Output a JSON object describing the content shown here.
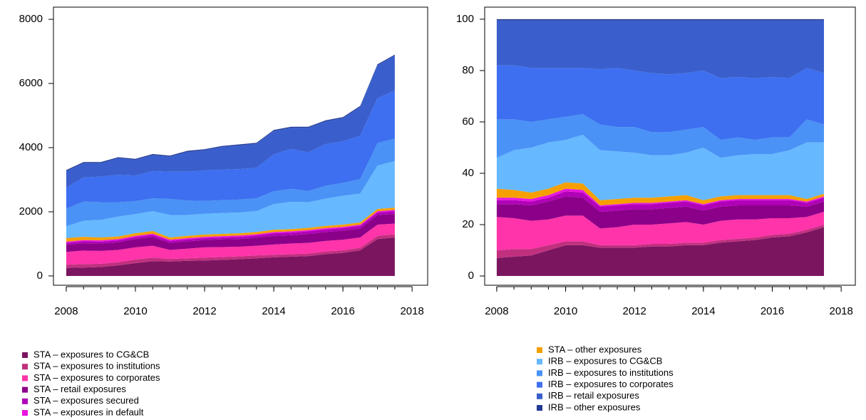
{
  "chart_data": [
    {
      "type": "area",
      "stacked": true,
      "x": [
        2008,
        2008.5,
        2009,
        2009.5,
        2010,
        2010.5,
        2011,
        2011.5,
        2012,
        2012.5,
        2013,
        2013.5,
        2014,
        2014.5,
        2015,
        2015.5,
        2016,
        2016.5,
        2017,
        2017.5
      ],
      "xlim": [
        2007.63,
        2018.45
      ],
      "xticks": [
        2008,
        2010,
        2012,
        2014,
        2016,
        2018
      ],
      "ylim": [
        -290,
        8380
      ],
      "yticks": [
        0,
        2000,
        4000,
        6000,
        8000
      ],
      "legend_entries": [
        0,
        1,
        2,
        3,
        4,
        5
      ],
      "series": [
        {
          "name": "STA – exposures to CG&CB",
          "color": "#7b1560",
          "values": [
            250,
            260,
            280,
            330,
            400,
            460,
            450,
            470,
            480,
            500,
            520,
            550,
            580,
            600,
            620,
            680,
            720,
            800,
            1150,
            1200
          ]
        },
        {
          "name": "STA – exposures to institutions",
          "color": "#c1307f",
          "values": [
            100,
            110,
            100,
            100,
            110,
            110,
            80,
            80,
            90,
            90,
            90,
            90,
            80,
            80,
            80,
            80,
            80,
            80,
            100,
            100
          ]
        },
        {
          "name": "STA – exposures to corporates",
          "color": "#ff33aa",
          "values": [
            400,
            420,
            400,
            380,
            380,
            370,
            280,
            300,
            320,
            310,
            300,
            300,
            320,
            330,
            330,
            330,
            330,
            320,
            350,
            330
          ]
        },
        {
          "name": "STA – retail exposures",
          "color": "#8b0088",
          "values": [
            220,
            230,
            230,
            240,
            260,
            270,
            220,
            230,
            230,
            240,
            240,
            250,
            270,
            260,
            280,
            280,
            280,
            280,
            300,
            300
          ]
        },
        {
          "name": "STA – exposures secured",
          "color": "#b000b8",
          "values": [
            60,
            60,
            60,
            60,
            60,
            70,
            60,
            60,
            60,
            60,
            70,
            70,
            80,
            80,
            80,
            80,
            80,
            80,
            80,
            90
          ]
        },
        {
          "name": "STA – exposures in default",
          "color": "#e815e0",
          "values": [
            40,
            40,
            40,
            40,
            40,
            40,
            40,
            40,
            40,
            40,
            40,
            40,
            40,
            40,
            40,
            40,
            40,
            40,
            40,
            40
          ]
        },
        {
          "name": "STA – other exposures",
          "color": "#f5a000",
          "values": [
            110,
            100,
            90,
            80,
            80,
            80,
            70,
            70,
            70,
            70,
            70,
            70,
            70,
            70,
            70,
            70,
            70,
            70,
            70,
            70
          ]
        },
        {
          "name": "IRB – exposures to CG&CB",
          "color": "#66b8ff",
          "values": [
            370,
            500,
            550,
            620,
            600,
            620,
            700,
            650,
            650,
            650,
            650,
            650,
            800,
            850,
            800,
            850,
            900,
            900,
            1350,
            1450
          ]
        },
        {
          "name": "IRB – exposures to institutions",
          "color": "#4a92f5",
          "values": [
            550,
            600,
            550,
            450,
            400,
            400,
            500,
            450,
            400,
            400,
            400,
            400,
            400,
            400,
            350,
            400,
            400,
            450,
            700,
            700
          ]
        },
        {
          "name": "IRB – exposures to corporates",
          "color": "#3d6ff0",
          "values": [
            650,
            750,
            800,
            850,
            800,
            850,
            850,
            900,
            950,
            950,
            950,
            950,
            1150,
            1250,
            1200,
            1300,
            1300,
            1350,
            1400,
            1500
          ]
        },
        {
          "name": "IRB – retail exposures",
          "color": "#3a5fcd",
          "values": [
            520,
            450,
            420,
            520,
            490,
            500,
            470,
            620,
            630,
            710,
            740,
            750,
            730,
            660,
            770,
            710,
            720,
            900,
            1030,
            1090
          ]
        },
        {
          "name": "IRB – other exposures",
          "color": "#233a94",
          "values": [
            30,
            30,
            30,
            30,
            30,
            30,
            30,
            30,
            30,
            30,
            30,
            30,
            30,
            30,
            30,
            30,
            30,
            30,
            30,
            30
          ]
        }
      ]
    },
    {
      "type": "area",
      "stacked": true,
      "x": [
        2008,
        2008.5,
        2009,
        2009.5,
        2010,
        2010.5,
        2011,
        2011.5,
        2012,
        2012.5,
        2013,
        2013.5,
        2014,
        2014.5,
        2015,
        2015.5,
        2016,
        2016.5,
        2017,
        2017.5
      ],
      "xlim": [
        2007.65,
        2018.41
      ],
      "xticks": [
        2008,
        2010,
        2012,
        2014,
        2016,
        2018
      ],
      "ylim": [
        -3.6,
        104.7
      ],
      "yticks": [
        0,
        20,
        40,
        60,
        80,
        100
      ],
      "legend_entries": [
        6,
        7,
        8,
        9,
        10,
        11
      ],
      "series": [
        {
          "name": "STA – exposures to CG&CB",
          "color": "#7b1560",
          "values": [
            7,
            7.5,
            8,
            10,
            12,
            12,
            11,
            11,
            11,
            11.5,
            11.5,
            12,
            12,
            13,
            13.5,
            14,
            15,
            15.5,
            17,
            19
          ]
        },
        {
          "name": "STA – exposures to institutions",
          "color": "#c1307f",
          "values": [
            3,
            3,
            2.5,
            2,
            1.5,
            1.5,
            1,
            1,
            1,
            1,
            1,
            1,
            1,
            1,
            1,
            1,
            1,
            1,
            1,
            1
          ]
        },
        {
          "name": "STA – exposures to corporates",
          "color": "#ff33aa",
          "values": [
            13,
            12,
            11,
            10,
            10,
            10,
            6.5,
            7,
            8,
            7.5,
            8,
            8,
            7,
            7.5,
            7.5,
            7,
            6.5,
            6,
            5,
            5
          ]
        },
        {
          "name": "STA – retail exposures",
          "color": "#8b0088",
          "values": [
            5,
            5.5,
            6,
            7,
            7.5,
            7,
            6.5,
            6.5,
            6,
            6,
            6,
            6,
            5.5,
            5.5,
            5.5,
            5.5,
            5,
            5,
            4,
            4
          ]
        },
        {
          "name": "STA – exposures secured",
          "color": "#b000b8",
          "values": [
            1.5,
            1.5,
            1.5,
            1.5,
            2,
            2,
            2,
            2,
            2,
            2,
            2,
            2,
            2,
            2,
            2,
            2,
            2,
            2,
            1.5,
            1.5
          ]
        },
        {
          "name": "STA – exposures in default",
          "color": "#e815e0",
          "values": [
            1,
            1,
            1,
            1,
            1,
            1,
            0.5,
            0.5,
            0.5,
            0.5,
            0.5,
            0.5,
            0.5,
            0.5,
            0.5,
            0.5,
            0.5,
            0.5,
            0.5,
            0.5
          ]
        },
        {
          "name": "STA – other exposures",
          "color": "#f5a000",
          "values": [
            3.5,
            3,
            2.5,
            2.5,
            2.5,
            2.5,
            2,
            2,
            2,
            2,
            2,
            2,
            1.5,
            1.5,
            1.5,
            1.5,
            1.5,
            1.5,
            1,
            1
          ]
        },
        {
          "name": "IRB – exposures to CG&CB",
          "color": "#66b8ff",
          "values": [
            12,
            15.5,
            17.5,
            18,
            16.5,
            19,
            19.5,
            18.5,
            17.5,
            16.5,
            16,
            16.5,
            20.5,
            15,
            15.5,
            16,
            16,
            17.5,
            22,
            20
          ]
        },
        {
          "name": "IRB – exposures to institutions",
          "color": "#4a92f5",
          "values": [
            15,
            12,
            10,
            9,
            9,
            8,
            10,
            9.5,
            10,
            9,
            9,
            9,
            8,
            7,
            7,
            5.5,
            6.5,
            5,
            9,
            7
          ]
        },
        {
          "name": "IRB – exposures to corporates",
          "color": "#3d6ff0",
          "values": [
            21,
            21,
            21,
            20,
            19,
            18,
            21.5,
            23,
            22,
            23,
            22.5,
            22,
            22,
            24,
            23.5,
            24,
            23.5,
            23,
            20,
            20
          ]
        },
        {
          "name": "IRB – retail exposures",
          "color": "#3a5fcd",
          "values": [
            17.5,
            17.5,
            18.5,
            18.5,
            18.5,
            18.5,
            19,
            18.5,
            19.5,
            20.5,
            21,
            20.5,
            19.5,
            22.5,
            22,
            22.5,
            22,
            22.5,
            18.5,
            20.5
          ]
        },
        {
          "name": "IRB – other exposures",
          "color": "#233a94",
          "values": [
            0.5,
            0.5,
            0.5,
            0.5,
            0.5,
            0.5,
            0.5,
            0.5,
            0.5,
            0.5,
            0.5,
            0.5,
            0.5,
            0.5,
            0.5,
            0.5,
            0.5,
            0.5,
            0.5,
            0.5
          ]
        }
      ]
    }
  ]
}
